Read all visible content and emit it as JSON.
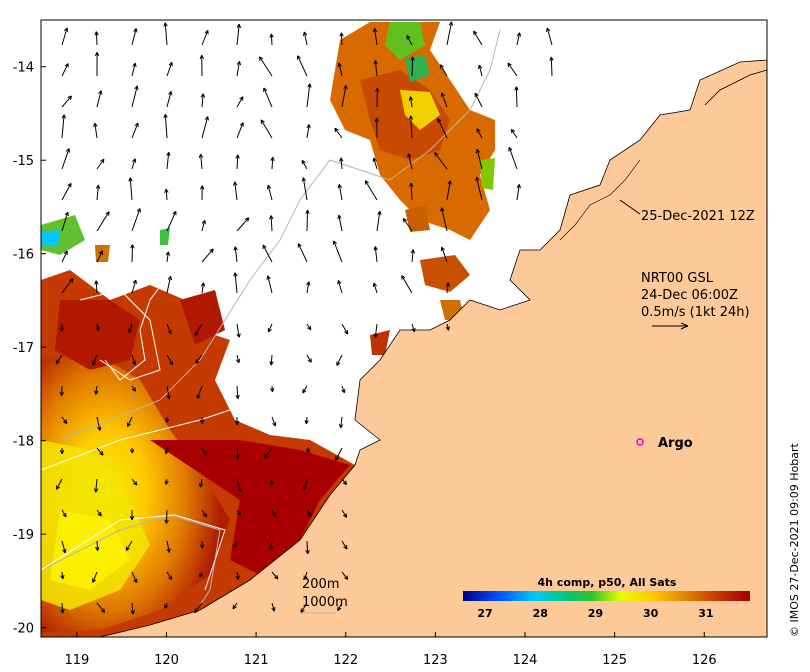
{
  "map": {
    "x_ticks": [
      "119",
      "120",
      "121",
      "122",
      "123",
      "124",
      "125",
      "126"
    ],
    "y_ticks": [
      "-14",
      "-15",
      "-16",
      "-17",
      "-18",
      "-19",
      "-20"
    ],
    "lon_range": [
      118.6,
      126.7
    ],
    "lat_range": [
      -20.1,
      -13.5
    ]
  },
  "annotations": {
    "sst_time": "25-Dec-2021 12Z",
    "current_line1": "NRT00 GSL",
    "current_line2": "24-Dec 06:00Z",
    "current_line3": "0.5m/s (1kt 24h)",
    "argo_label": "Argo",
    "contour_200": "200m",
    "contour_1000": "1000m",
    "credit": "© IMOS 27-Dec-2021 09:09 Hobart"
  },
  "colorbar": {
    "title": "4h comp, p50, All Sats",
    "ticks": [
      "27",
      "28",
      "29",
      "30",
      "31"
    ],
    "range": [
      26.6,
      31.8
    ]
  },
  "colors": {
    "land": "#fdc998",
    "hot": "#a80000",
    "argo": "#e000e0"
  }
}
